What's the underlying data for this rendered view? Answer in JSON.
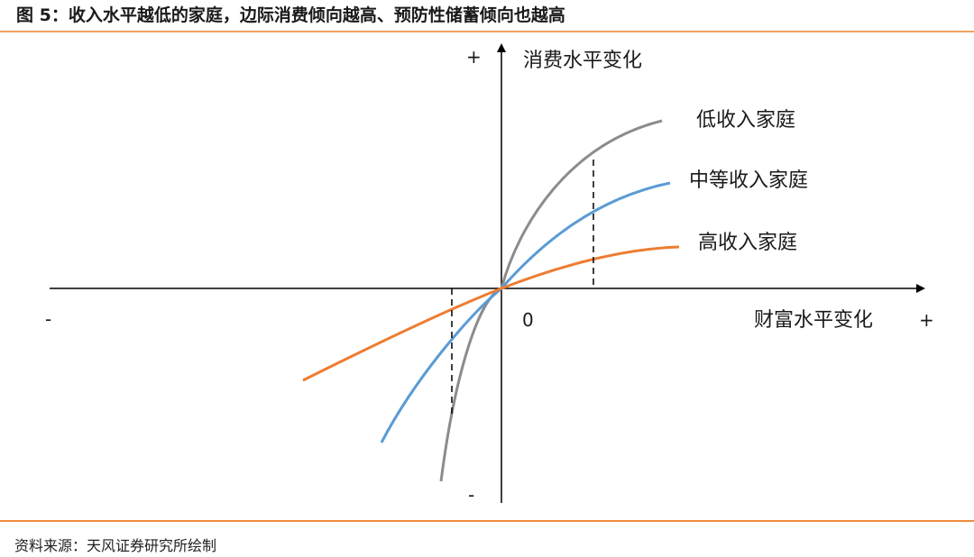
{
  "header": {
    "title": "图 5：收入水平越低的家庭，边际消费倾向越高、预防性储蓄倾向也越高"
  },
  "footer": {
    "source": "资料来源：天风证券研究所绘制"
  },
  "diagram": {
    "y_axis_label": "消费水平变化",
    "x_axis_label": "财富水平变化",
    "origin_label": "0",
    "y_plus": "+",
    "y_minus": "-",
    "x_plus": "+",
    "x_minus": "-",
    "curves": [
      {
        "id": "low",
        "label": "低收入家庭",
        "color": "#8c8c8c"
      },
      {
        "id": "mid",
        "label": "中等收入家庭",
        "color": "#5b9bd5"
      },
      {
        "id": "high",
        "label": "高收入家庭",
        "color": "#ed7d31"
      }
    ]
  }
}
